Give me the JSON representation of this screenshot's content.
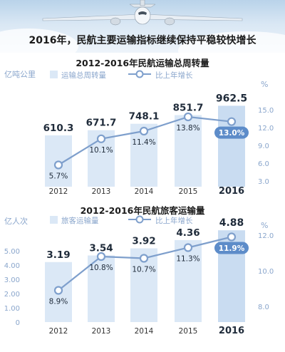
{
  "headline": "2016年，民航主要运输指标继续保持平稳较快增长",
  "chart_data": [
    {
      "type": "bar",
      "title": "2012-2016年民航运输总周转量",
      "categories": [
        "2012",
        "2013",
        "2014",
        "2015",
        "2016"
      ],
      "left_unit": "亿吨公里",
      "right_unit": "%",
      "ylim": [
        0,
        1000
      ],
      "y2lim": [
        3.0,
        15.0
      ],
      "left_ticks": [],
      "right_ticks": [
        "15.0",
        "12.0",
        "9.0",
        "6.0",
        "3.0"
      ],
      "grid": false,
      "legend": "top",
      "series": [
        {
          "name": "运输总周转量",
          "kind": "bar",
          "axis": "left",
          "values": [
            610.3,
            671.7,
            748.1,
            851.7,
            962.5
          ],
          "labels": [
            "610.3",
            "671.7",
            "748.1",
            "851.7",
            "962.5"
          ]
        },
        {
          "name": "比上年增长",
          "kind": "line",
          "axis": "right",
          "values": [
            5.7,
            10.1,
            11.4,
            13.8,
            13.0
          ],
          "labels": [
            "5.7%",
            "10.1%",
            "11.4%",
            "13.8%",
            "13.0%"
          ]
        }
      ]
    },
    {
      "type": "bar",
      "title": "2012-2016年民航旅客运输量",
      "categories": [
        "2012",
        "2013",
        "2014",
        "2015",
        "2016"
      ],
      "left_unit": "亿人次",
      "right_unit": "%",
      "ylim": [
        0,
        5.0
      ],
      "y2lim": [
        8.0,
        12.0
      ],
      "left_ticks": [
        "5.00",
        "4.00",
        "3.00",
        "2.00",
        "1.00",
        "0"
      ],
      "right_ticks": [
        "12.0",
        "10.0",
        "8.0"
      ],
      "grid": false,
      "legend": "top",
      "series": [
        {
          "name": "旅客运输量",
          "kind": "bar",
          "axis": "left",
          "values": [
            3.19,
            3.54,
            3.92,
            4.36,
            4.88
          ],
          "labels": [
            "3.19",
            "3.54",
            "3.92",
            "4.36",
            "4.88"
          ]
        },
        {
          "name": "比上年增长",
          "kind": "line",
          "axis": "right",
          "values": [
            8.9,
            10.8,
            10.7,
            11.3,
            11.9
          ],
          "labels": [
            "8.9%",
            "10.8%",
            "10.7%",
            "11.3%",
            "11.9%"
          ]
        }
      ]
    }
  ],
  "colors": {
    "bar": "#dbe8f6",
    "bar_last": "#c9dcf1",
    "line": "#7e9fcc",
    "axis_text": "#8aa6cc",
    "value_text": "#1f2b3a",
    "highlight_pill": "#5d8cc9"
  }
}
